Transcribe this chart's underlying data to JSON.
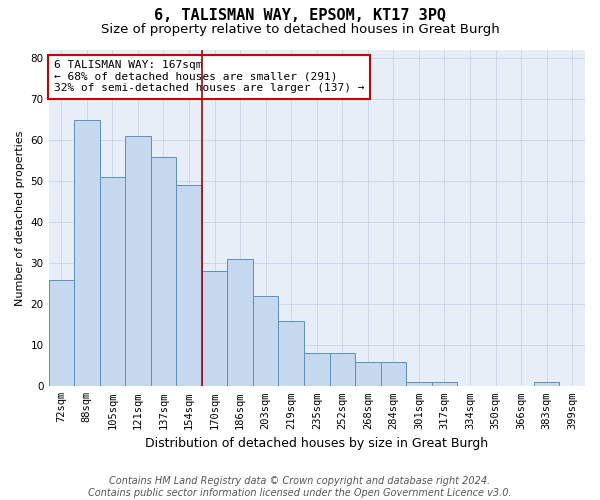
{
  "title": "6, TALISMAN WAY, EPSOM, KT17 3PQ",
  "subtitle": "Size of property relative to detached houses in Great Burgh",
  "xlabel": "Distribution of detached houses by size in Great Burgh",
  "ylabel": "Number of detached properties",
  "categories": [
    "72sqm",
    "88sqm",
    "105sqm",
    "121sqm",
    "137sqm",
    "154sqm",
    "170sqm",
    "186sqm",
    "203sqm",
    "219sqm",
    "235sqm",
    "252sqm",
    "268sqm",
    "284sqm",
    "301sqm",
    "317sqm",
    "334sqm",
    "350sqm",
    "366sqm",
    "383sqm",
    "399sqm"
  ],
  "values": [
    26,
    65,
    51,
    61,
    56,
    49,
    28,
    31,
    22,
    16,
    8,
    8,
    6,
    6,
    1,
    1,
    0,
    0,
    0,
    1,
    0
  ],
  "bar_color": "#c5d8ed",
  "bar_edge_color": "#5a8fc0",
  "grid_color": "#c8d4e8",
  "background_color": "#e8eef8",
  "property_line_color": "#aa0000",
  "annotation_text": "6 TALISMAN WAY: 167sqm\n← 68% of detached houses are smaller (291)\n32% of semi-detached houses are larger (137) →",
  "annotation_box_color": "#cc0000",
  "ylim": [
    0,
    82
  ],
  "yticks": [
    0,
    10,
    20,
    30,
    40,
    50,
    60,
    70,
    80
  ],
  "footnote": "Contains HM Land Registry data © Crown copyright and database right 2024.\nContains public sector information licensed under the Open Government Licence v3.0.",
  "title_fontsize": 11,
  "subtitle_fontsize": 9.5,
  "xlabel_fontsize": 9,
  "ylabel_fontsize": 8,
  "tick_fontsize": 7.5,
  "annot_fontsize": 8,
  "footnote_fontsize": 7
}
